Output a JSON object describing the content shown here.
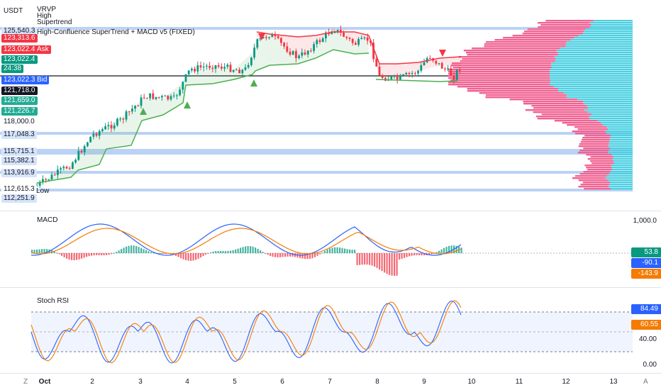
{
  "currency_label": "USDT",
  "legend": {
    "vrvp": "VRVP",
    "high": "High",
    "supertrend": "Supertrend",
    "study": "High-Confluence SuperTrend + MACD v5 (FIXED)"
  },
  "price_badges": [
    {
      "text": "125,540.3",
      "bg": "#d6e4fb",
      "fg": "#131722"
    },
    {
      "text": "123,313.6",
      "bg": "#f23645",
      "fg": "#ffffff"
    },
    {
      "text": "123,022.4",
      "bg": "#f23645",
      "fg": "#ffffff"
    },
    {
      "text": "123,022.4",
      "bg": "#089981",
      "fg": "#ffffff"
    },
    {
      "text": "24:38",
      "bg": "#089981",
      "fg": "#ffffff"
    },
    {
      "text": "123,022.3",
      "bg": "#2962ff",
      "fg": "#ffffff"
    },
    {
      "text": "121,718.0",
      "bg": "#131722",
      "fg": "#ffffff"
    },
    {
      "text": "121,659.0",
      "bg": "#22ab94",
      "fg": "#ffffff"
    },
    {
      "text": "121,226.7",
      "bg": "#22ab94",
      "fg": "#ffffff"
    },
    {
      "text": "118,000.0",
      "bg": "#ffffff",
      "fg": "#131722"
    },
    {
      "text": "117,048.3",
      "bg": "#d6e4fb",
      "fg": "#131722"
    },
    {
      "text": "115,715.1",
      "bg": "#d6e4fb",
      "fg": "#131722"
    },
    {
      "text": "115,382.1",
      "bg": "#d6e4fb",
      "fg": "#131722"
    },
    {
      "text": "113,916.9",
      "bg": "#d6e4fb",
      "fg": "#131722"
    },
    {
      "text": "112,615.3",
      "bg": "#ffffff",
      "fg": "#131722"
    },
    {
      "text": "112,251.9",
      "bg": "#d6e4fb",
      "fg": "#131722"
    }
  ],
  "tags": {
    "ask": "Ask",
    "bid": "Bid",
    "low": "Low"
  },
  "macd": {
    "title": "MACD",
    "axis_top": "1,000.0",
    "hist_value": "53.8",
    "macd_value": "-90.1",
    "signal_value": "-143.9",
    "colors": {
      "hist": "#089981",
      "macd": "#2962ff",
      "signal": "#f57c00"
    }
  },
  "stoch": {
    "title": "Stoch RSI",
    "k_value": "84.49",
    "d_value": "60.55",
    "level_mid": "40.00",
    "level_low": "0.00",
    "colors": {
      "k": "#2962ff",
      "d": "#f57c00"
    }
  },
  "x_axis": [
    "Oct",
    "2",
    "3",
    "4",
    "5",
    "6",
    "7",
    "8",
    "9",
    "10",
    "11",
    "12",
    "13"
  ],
  "corner_icons": {
    "left": "Z",
    "right": "A"
  },
  "colors": {
    "up": "#089981",
    "down": "#f23645",
    "st_up": "#4caf50",
    "st_down": "#f23645",
    "vp_up": "#4dd0e1",
    "vp_down": "#f06292",
    "level": "#bbd2f5"
  }
}
